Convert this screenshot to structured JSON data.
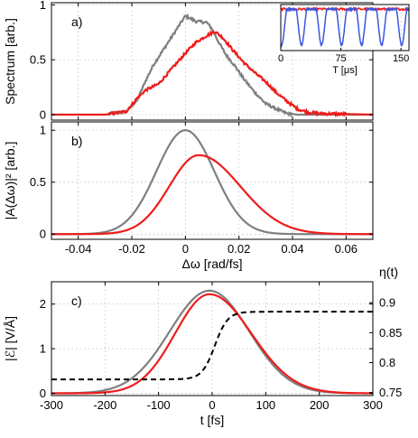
{
  "colors": {
    "gray": "#7f7f7f",
    "red": "#ee1c1c",
    "blue": "#3a55e0",
    "black": "#000000"
  },
  "chart_data": [
    {
      "id": "a",
      "type": "line",
      "panel_label": "a)",
      "ylabel": "Spectrum [arb.]",
      "xlim": [
        -0.05,
        0.07
      ],
      "ylim": [
        -0.05,
        1.02
      ],
      "yticks": [
        "0",
        "0.5",
        "1"
      ],
      "grid": true,
      "series": [
        {
          "color": "gray",
          "noise": 0.012,
          "x": [
            -0.05,
            -0.03,
            -0.022,
            -0.018,
            -0.015,
            -0.012,
            -0.008,
            -0.004,
            0.0,
            0.004,
            0.008,
            0.01,
            0.012,
            0.015,
            0.018,
            0.022,
            0.026,
            0.03,
            0.035,
            0.038,
            0.042,
            0.05,
            0.07
          ],
          "y": [
            0.0,
            0.0,
            0.03,
            0.13,
            0.3,
            0.45,
            0.6,
            0.75,
            0.9,
            0.85,
            0.84,
            0.78,
            0.68,
            0.55,
            0.46,
            0.32,
            0.2,
            0.1,
            0.04,
            0.01,
            0.0,
            0.0,
            0.0
          ]
        },
        {
          "color": "red",
          "noise": 0.012,
          "x": [
            -0.05,
            -0.03,
            -0.022,
            -0.018,
            -0.015,
            -0.01,
            -0.005,
            0.0,
            0.004,
            0.008,
            0.011,
            0.014,
            0.018,
            0.022,
            0.026,
            0.03,
            0.034,
            0.038,
            0.042,
            0.046,
            0.05,
            0.07
          ],
          "y": [
            0.0,
            0.0,
            0.03,
            0.15,
            0.22,
            0.28,
            0.42,
            0.56,
            0.66,
            0.72,
            0.76,
            0.7,
            0.58,
            0.47,
            0.38,
            0.3,
            0.2,
            0.12,
            0.05,
            0.02,
            0.01,
            0.0
          ]
        }
      ],
      "inset": {
        "xlabel": "T [μs]",
        "xlim": [
          0,
          160
        ],
        "ylim": [
          0,
          1
        ],
        "xticks": [
          "0",
          "75",
          "150"
        ],
        "series": [
          {
            "color": "blue",
            "name": "",
            "description_values": "periodic dips",
            "period": 25,
            "low": 0.12,
            "high": 0.9
          },
          {
            "color": "red",
            "name": "",
            "level": 0.9
          }
        ]
      }
    },
    {
      "id": "b",
      "type": "line",
      "panel_label": "b)",
      "ylabel": "|A(Δω)|² [arb.]",
      "xlabel": "Δω [rad/fs]",
      "xlim": [
        -0.05,
        0.07
      ],
      "ylim": [
        -0.05,
        1.08
      ],
      "xticks": [
        "-0.04",
        "-0.02",
        "0",
        "0.02",
        "0.04",
        "0.06"
      ],
      "yticks": [
        "0",
        "0.5",
        "1"
      ],
      "grid": true,
      "series": [
        {
          "color": "gray",
          "shape": "gaussian",
          "center": 0.0,
          "sigma": 0.0108,
          "amplitude": 1.0
        },
        {
          "color": "red",
          "shape": "skewed-gaussian",
          "center": 0.005,
          "sigma_left": 0.011,
          "sigma_right": 0.0155,
          "amplitude": 0.76
        }
      ]
    },
    {
      "id": "c",
      "type": "line",
      "panel_label": "c)",
      "ylabel": "|ℰ| [V/Å]",
      "ylabel_right": "η(t)",
      "xlabel": "t [fs]",
      "xlim": [
        -300,
        300
      ],
      "ylim": [
        -0.05,
        2.5
      ],
      "ylim_right": [
        0.745,
        0.935
      ],
      "xticks": [
        "-300",
        "-200",
        "-100",
        "0",
        "100",
        "200",
        "300"
      ],
      "yticks": [
        "0",
        "1",
        "2"
      ],
      "yticks_right": [
        "0.75",
        "0.8",
        "0.85",
        "0.9"
      ],
      "grid": true,
      "series": [
        {
          "color": "gray",
          "shape": "gaussian",
          "center": -5,
          "sigma": 74,
          "amplitude": 2.3
        },
        {
          "color": "red",
          "shape": "skewed-gaussian",
          "center": -5,
          "sigma_left": 64,
          "sigma_right": 78,
          "amplitude": 2.22
        },
        {
          "color": "black",
          "style": "dashed",
          "axis": "right",
          "shape": "sigmoid",
          "low": 0.772,
          "high": 0.885,
          "center": 5,
          "width": 12
        }
      ]
    }
  ]
}
